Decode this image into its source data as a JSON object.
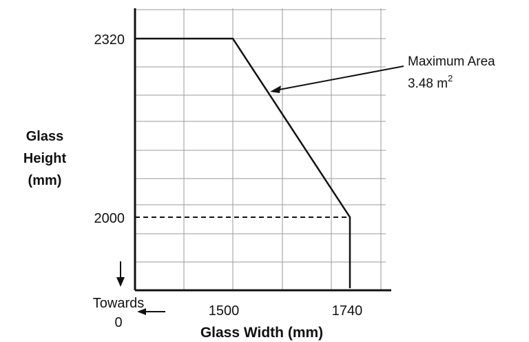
{
  "chart_data": {
    "type": "line",
    "title": "",
    "xlabel": "Glass Width (mm)",
    "ylabel": [
      "Glass",
      "Height",
      "(mm)"
    ],
    "x_ticks": [
      "1500",
      "1740"
    ],
    "y_ticks": [
      "2320",
      "2000"
    ],
    "series": [
      {
        "points": [
          {
            "x": 0,
            "y": 2320
          },
          {
            "x": 1500,
            "y": 2320
          },
          {
            "x": 1740,
            "y": 2000
          },
          {
            "x": 1740,
            "y": 1870
          }
        ]
      }
    ],
    "reference_line": {
      "y": 2000,
      "x_from": 0,
      "x_to": 1740,
      "style": "dashed"
    },
    "annotation": {
      "line1": "Maximum Area",
      "line2_value": "3.48 m",
      "line2_superscript": "2"
    },
    "axis_note": {
      "line1": "Towards",
      "line2": "0"
    },
    "grid": true,
    "colors": {
      "line": "#111111",
      "grid": "#9a9a9a",
      "background": "#ffffff"
    }
  }
}
